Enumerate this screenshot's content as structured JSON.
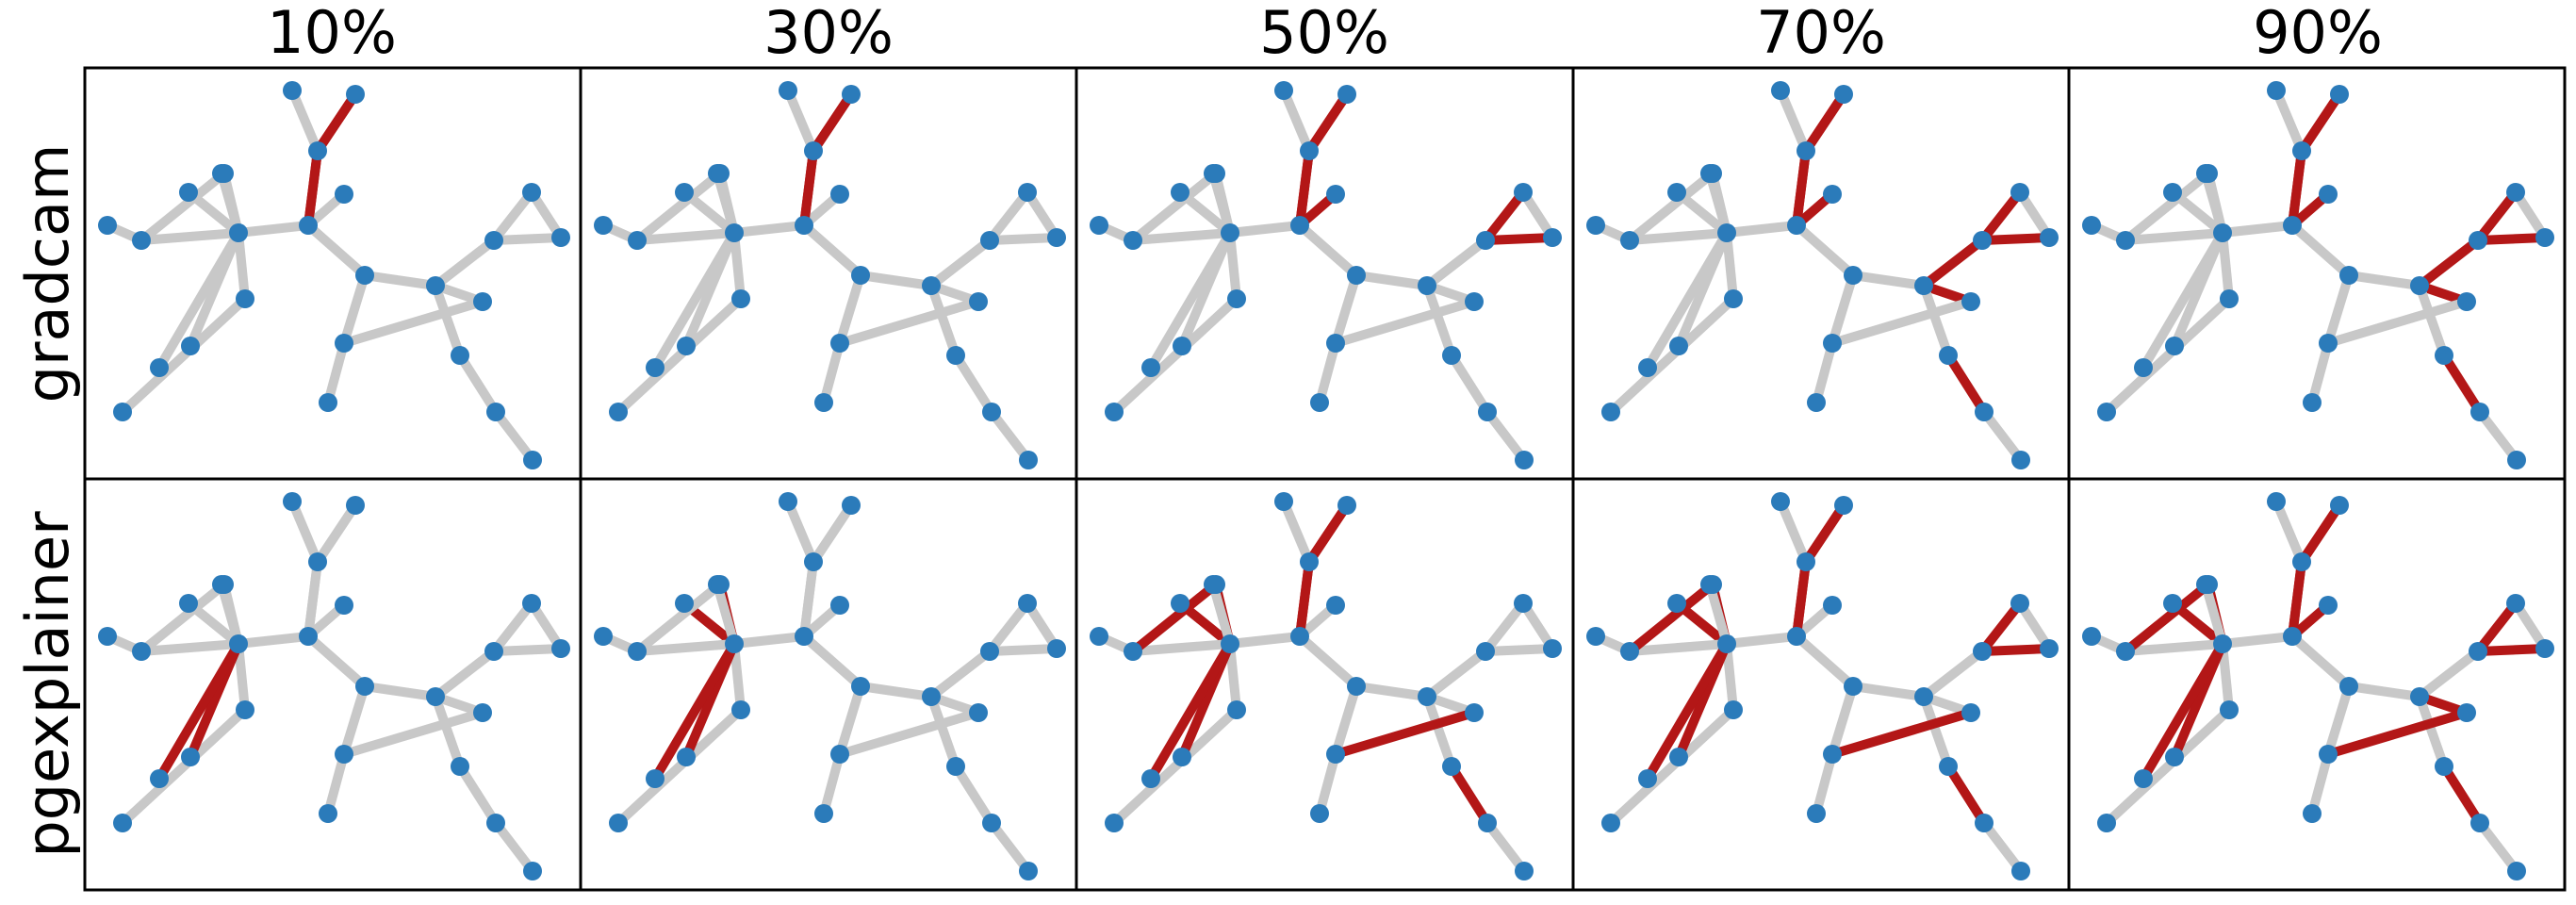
{
  "figure": {
    "column_titles": [
      "10%",
      "30%",
      "50%",
      "70%",
      "90%"
    ],
    "row_labels": [
      "gradcam",
      "pgexplainer"
    ]
  },
  "colors": {
    "node": "#2b7bba",
    "edge_default": "#c8c8c8",
    "edge_highlight": "#b31717",
    "frame": "#000000"
  },
  "graph": {
    "node_count": 30,
    "edge_count": 30
  },
  "panels": [
    [
      {
        "column": "10%",
        "row": "gradcam",
        "highlighted_edges": [
          [
            1,
            2
          ],
          [
            2,
            5
          ]
        ]
      },
      {
        "column": "30%",
        "row": "gradcam",
        "highlighted_edges": [
          [
            1,
            2
          ],
          [
            2,
            5
          ],
          [
            5,
            8
          ],
          [
            5,
            9
          ]
        ]
      },
      {
        "column": "50%",
        "row": "gradcam",
        "highlighted_edges": [
          [
            1,
            2
          ],
          [
            3,
            2
          ],
          [
            2,
            5
          ],
          [
            5,
            8
          ],
          [
            5,
            9
          ],
          [
            8,
            9
          ],
          [
            9,
            10
          ],
          [
            4,
            5
          ],
          [
            5,
            9
          ]
        ]
      },
      {
        "column": "70%",
        "row": "gradcam",
        "highlighted_edges": [
          [
            1,
            2
          ],
          [
            3,
            2
          ],
          [
            2,
            5
          ],
          [
            5,
            8
          ],
          [
            5,
            9
          ],
          [
            8,
            9
          ],
          [
            9,
            10
          ],
          [
            4,
            5
          ],
          [
            6,
            7
          ],
          [
            9,
            11
          ],
          [
            11,
            13
          ],
          [
            18,
            20
          ],
          [
            18,
            21
          ],
          [
            18,
            22
          ],
          [
            22,
            23
          ]
        ]
      },
      {
        "column": "90%",
        "row": "gradcam",
        "highlighted_edges": [
          [
            1,
            2
          ],
          [
            3,
            2
          ],
          [
            2,
            5
          ],
          [
            5,
            8
          ],
          [
            5,
            9
          ],
          [
            8,
            9
          ],
          [
            9,
            10
          ],
          [
            4,
            5
          ],
          [
            6,
            7
          ],
          [
            9,
            11
          ],
          [
            11,
            13
          ],
          [
            15,
            18
          ],
          [
            18,
            20
          ],
          [
            18,
            21
          ],
          [
            18,
            22
          ],
          [
            22,
            23
          ],
          [
            11,
            14
          ]
        ]
      }
    ],
    [
      {
        "column": "10%",
        "row": "pgexplainer",
        "highlighted_edges": [
          [
            16,
            24
          ],
          [
            17,
            24
          ]
        ]
      },
      {
        "column": "30%",
        "row": "pgexplainer",
        "highlighted_edges": [
          [
            16,
            24
          ],
          [
            17,
            24
          ],
          [
            24,
            25
          ],
          [
            24,
            26
          ],
          [
            28,
            27
          ],
          [
            15,
            18
          ]
        ]
      },
      {
        "column": "50%",
        "row": "pgexplainer",
        "highlighted_edges": [
          [
            16,
            24
          ],
          [
            17,
            24
          ],
          [
            24,
            25
          ],
          [
            24,
            26
          ],
          [
            26,
            27
          ],
          [
            28,
            27
          ],
          [
            2,
            5
          ],
          [
            13,
            15
          ],
          [
            15,
            18
          ],
          [
            18,
            21
          ],
          [
            1,
            2
          ]
        ]
      },
      {
        "column": "70%",
        "row": "pgexplainer",
        "highlighted_edges": [
          [
            16,
            24
          ],
          [
            17,
            24
          ],
          [
            24,
            25
          ],
          [
            24,
            26
          ],
          [
            26,
            27
          ],
          [
            2,
            5
          ],
          [
            13,
            15
          ],
          [
            15,
            18
          ],
          [
            18,
            21
          ],
          [
            18,
            20
          ],
          [
            1,
            2
          ],
          [
            3,
            2
          ],
          [
            12,
            13
          ],
          [
            18,
            22
          ],
          [
            22,
            23
          ],
          [
            8,
            9
          ],
          [
            9,
            10
          ],
          [
            5,
            9
          ]
        ]
      },
      {
        "column": "90%",
        "row": "pgexplainer",
        "highlighted_edges": [
          [
            16,
            24
          ],
          [
            17,
            24
          ],
          [
            24,
            25
          ],
          [
            24,
            26
          ],
          [
            26,
            27
          ],
          [
            28,
            27
          ],
          [
            2,
            5
          ],
          [
            13,
            15
          ],
          [
            15,
            18
          ],
          [
            18,
            21
          ],
          [
            18,
            20
          ],
          [
            1,
            2
          ],
          [
            3,
            2
          ],
          [
            12,
            13
          ],
          [
            18,
            22
          ],
          [
            22,
            23
          ],
          [
            8,
            9
          ],
          [
            9,
            10
          ],
          [
            5,
            9
          ],
          [
            4,
            5
          ],
          [
            11,
            13
          ]
        ]
      }
    ]
  ]
}
